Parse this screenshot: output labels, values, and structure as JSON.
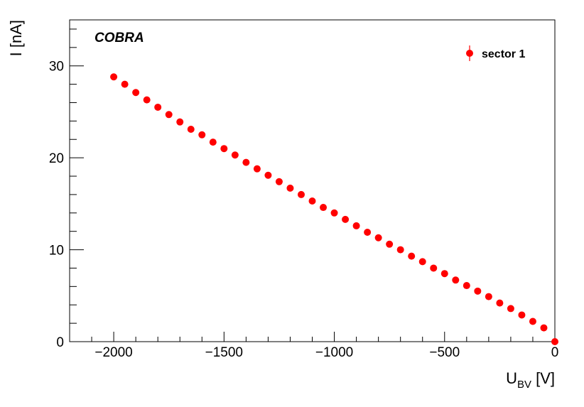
{
  "chart_data": {
    "type": "scatter",
    "annotation": "COBRA",
    "xlabel_main": "U",
    "xlabel_sub": "BV",
    "xlabel_unit": " [V]",
    "ylabel": "I [nA]",
    "xlim": [
      -2200,
      0
    ],
    "ylim": [
      0,
      35
    ],
    "x_major_ticks": [
      -2000,
      -1500,
      -1000,
      -500,
      0
    ],
    "x_tick_labels": [
      "−2000",
      "−1500",
      "−1000",
      "−500",
      "0"
    ],
    "y_major_ticks": [
      0,
      10,
      20,
      30
    ],
    "y_tick_labels": [
      "0",
      "10",
      "20",
      "30"
    ],
    "grid": false,
    "legend_position": "top-right",
    "marker_color": "#ff0000",
    "series": [
      {
        "name": "sector 1",
        "x": [
          -2000,
          -1950,
          -1900,
          -1850,
          -1800,
          -1750,
          -1700,
          -1650,
          -1600,
          -1550,
          -1500,
          -1450,
          -1400,
          -1350,
          -1300,
          -1250,
          -1200,
          -1150,
          -1100,
          -1050,
          -1000,
          -950,
          -900,
          -850,
          -800,
          -750,
          -700,
          -650,
          -600,
          -550,
          -500,
          -450,
          -400,
          -350,
          -300,
          -250,
          -200,
          -150,
          -100,
          -50,
          0
        ],
        "y": [
          28.8,
          28.0,
          27.1,
          26.3,
          25.5,
          24.7,
          23.9,
          23.1,
          22.5,
          21.7,
          21.0,
          20.3,
          19.5,
          18.8,
          18.1,
          17.4,
          16.7,
          16.0,
          15.3,
          14.6,
          14.0,
          13.3,
          12.6,
          11.9,
          11.3,
          10.6,
          10.0,
          9.3,
          8.7,
          8.0,
          7.4,
          6.7,
          6.1,
          5.5,
          4.9,
          4.2,
          3.6,
          2.9,
          2.2,
          1.5,
          0.0
        ]
      }
    ]
  }
}
